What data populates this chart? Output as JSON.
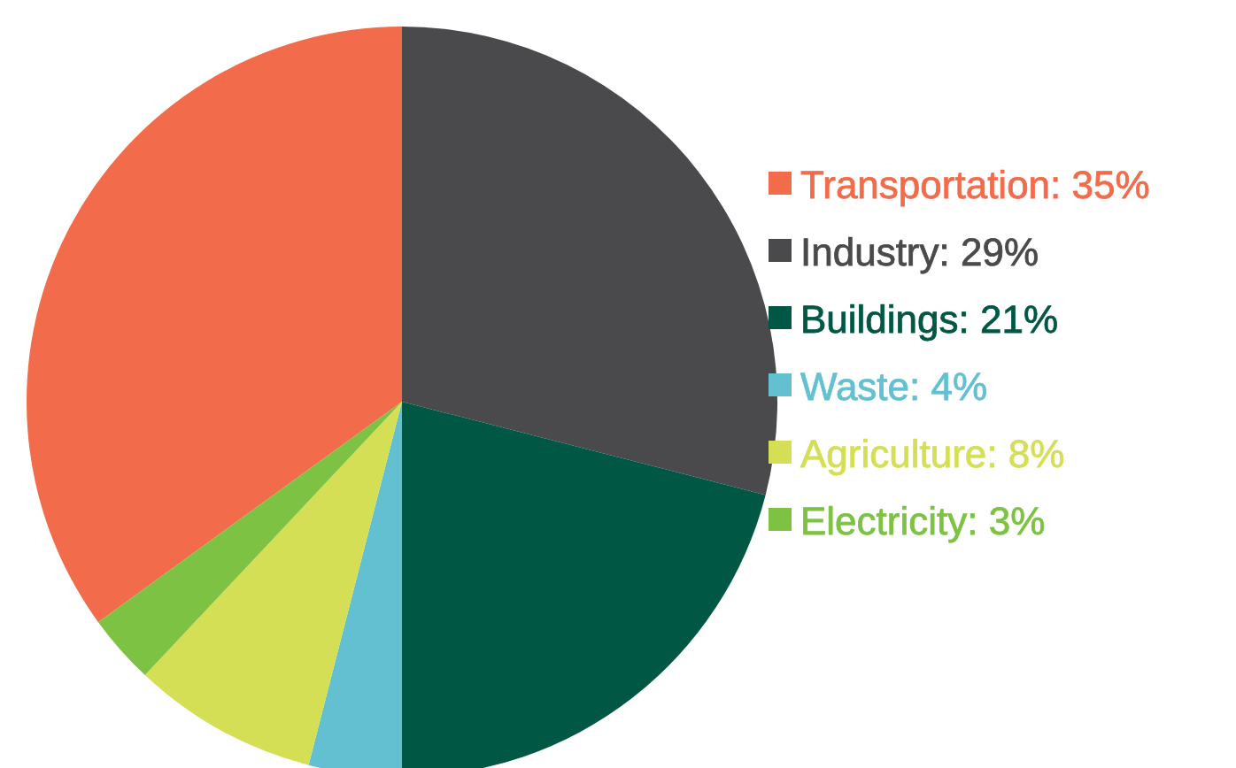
{
  "chart_data": {
    "type": "pie",
    "categories": [
      "Transportation",
      "Industry",
      "Buildings",
      "Waste",
      "Agriculture",
      "Electricity"
    ],
    "values": [
      35,
      29,
      21,
      4,
      8,
      3
    ],
    "value_labels": [
      "35%",
      "29%",
      "21%",
      "4%",
      "8%",
      "3%"
    ],
    "colors": [
      "#f26b4a",
      "#4a494b",
      "#005744",
      "#63c0d0",
      "#d4df55",
      "#7dc243"
    ],
    "legend": "right"
  }
}
